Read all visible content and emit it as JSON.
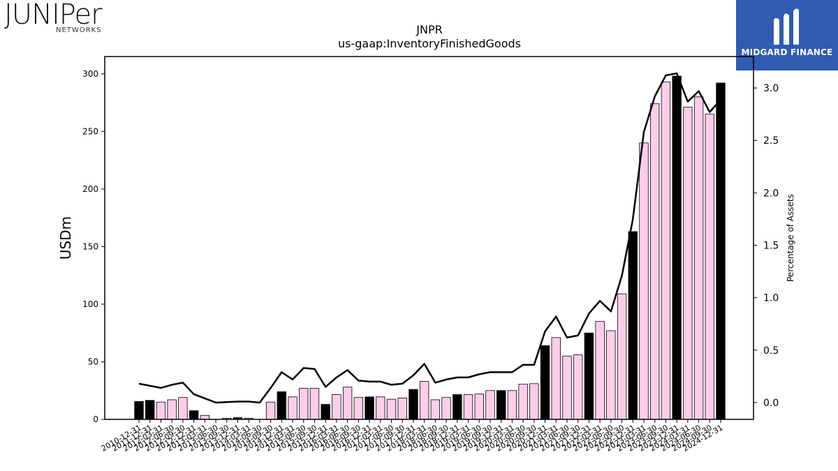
{
  "logos": {
    "left_word": "JUNIPer",
    "left_sub": "NETWORKS",
    "right_name": "MIDGARD FINANCE"
  },
  "chart_data": {
    "type": "bar",
    "title": "JNPR",
    "subtitle": "us-gaap:InventoryFinishedGoods",
    "ylabel": "USDm",
    "y2label": "Percentage of Assets",
    "ylim": [
      0,
      315
    ],
    "y2lim": [
      -0.16,
      3.3
    ],
    "yticks": [
      0,
      50,
      100,
      150,
      200,
      250,
      300
    ],
    "y2ticks": [
      0.0,
      0.5,
      1.0,
      1.5,
      2.0,
      2.5,
      3.0
    ],
    "categories": [
      "2010-12-31",
      "2011-12-31",
      "2012-03-31",
      "2012-06-30",
      "2012-09-30",
      "2012-12-31",
      "2013-03-31",
      "2013-06-30",
      "2013-09-30",
      "2013-12-31",
      "2014-03-31",
      "2014-06-30",
      "2014-09-30",
      "2014-12-31",
      "2015-03-31",
      "2015-06-30",
      "2015-09-30",
      "2015-12-31",
      "2016-03-31",
      "2016-06-30",
      "2016-09-30",
      "2016-12-31",
      "2017-03-31",
      "2017-06-30",
      "2017-09-30",
      "2017-12-31",
      "2018-03-31",
      "2018-06-30",
      "2018-09-30",
      "2018-12-31",
      "2019-03-31",
      "2019-06-30",
      "2019-09-30",
      "2019-12-31",
      "2020-03-31",
      "2020-06-30",
      "2020-09-30",
      "2020-12-31",
      "2021-03-31",
      "2021-06-30",
      "2021-09-30",
      "2021-12-31",
      "2022-03-31",
      "2022-06-30",
      "2022-09-30",
      "2022-12-31",
      "2023-03-31",
      "2023-06-30",
      "2023-09-30",
      "2023-12-31",
      "2024-03-31",
      "2024-06-30",
      "2024-09-30",
      "2024-12-31"
    ],
    "xticklabels": [
      "2010-12-31",
      "2011-12-31",
      "2012-03-31",
      "2012-06-30",
      "2012-09-30",
      "2012-12-31",
      "2013-03-31",
      "2013-06-30",
      "2013-09-30",
      "2013-12-31",
      "2014-03-31",
      "2014-06-30",
      "2014-09-30",
      "2014-12-31",
      "2015-03-31",
      "2015-06-30",
      "2015-09-30",
      "2015-12-31",
      "2016-03-31",
      "2016-06-30",
      "2016-09-30",
      "2016-12-31",
      "2017-03-31",
      "2017-06-30",
      "2017-09-30",
      "2017-12-31",
      "2018-03-31",
      "2018-06-30",
      "2018-09-30",
      "2018-12-31",
      "2019-03-31",
      "2019-06-30",
      "2019-09-30",
      "2019-12-31",
      "2020-03-31",
      "2020-06-30",
      "2020-09-30",
      "2020-12-31",
      "2021-03-31",
      "2021-06-30",
      "2021-09-30",
      "2021-12-31",
      "2022-03-31",
      "2022-06-30",
      "2022-09-30",
      "2022-12-31",
      "2023-03-31",
      "2023-06-30",
      "2023-09-30",
      "2023-12-31",
      "2024-03-31",
      "2024-06-30",
      "2024-09-30",
      "2024-12-31"
    ],
    "values": [
      15.5,
      16.5,
      15,
      17,
      19,
      7.5,
      3.5,
      0,
      1,
      1.5,
      1,
      0,
      15,
      24,
      19.5,
      27,
      27,
      13,
      21.5,
      28,
      19,
      19.5,
      19.5,
      17.5,
      18.5,
      26,
      33,
      17,
      19,
      21.5,
      21.5,
      22,
      25,
      25,
      25,
      30.5,
      31,
      64,
      71,
      55,
      56,
      75,
      85,
      77,
      109,
      163,
      240,
      274,
      293,
      298,
      271,
      280,
      265,
      292
    ],
    "year_end": [
      true,
      true,
      false,
      false,
      false,
      true,
      false,
      false,
      false,
      true,
      false,
      false,
      false,
      true,
      false,
      false,
      false,
      true,
      false,
      false,
      false,
      true,
      false,
      false,
      false,
      true,
      false,
      false,
      false,
      true,
      false,
      false,
      false,
      true,
      false,
      false,
      false,
      true,
      false,
      false,
      false,
      true,
      false,
      false,
      false,
      true,
      false,
      false,
      false,
      true,
      false,
      false,
      false,
      true
    ],
    "pct_assets": [
      0.18,
      0.16,
      0.14,
      0.17,
      0.19,
      0.08,
      0.04,
      0.0,
      0.005,
      0.01,
      0.01,
      0.0,
      0.14,
      0.29,
      0.22,
      0.33,
      0.32,
      0.15,
      0.24,
      0.31,
      0.21,
      0.2,
      0.2,
      0.17,
      0.18,
      0.26,
      0.37,
      0.19,
      0.22,
      0.24,
      0.24,
      0.27,
      0.29,
      0.29,
      0.29,
      0.36,
      0.36,
      0.68,
      0.82,
      0.62,
      0.64,
      0.85,
      0.97,
      0.87,
      1.21,
      1.75,
      2.58,
      2.92,
      3.12,
      3.14,
      2.87,
      2.97,
      2.77,
      2.89
    ],
    "colors": {
      "year_end_bar": "#000000",
      "quarter_bar": "#ffccea",
      "line": "#000000"
    }
  }
}
